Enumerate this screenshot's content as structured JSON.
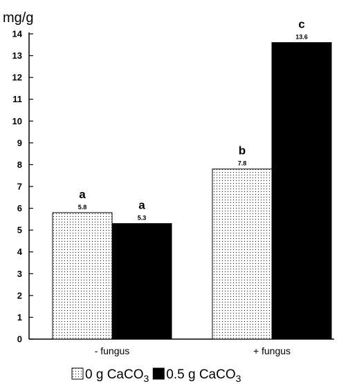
{
  "chart_data": {
    "type": "bar",
    "title": "",
    "ylabel": "mg/g",
    "xlabel": "",
    "ylim": [
      0,
      14
    ],
    "yticks": [
      0,
      1,
      2,
      3,
      4,
      5,
      6,
      7,
      8,
      9,
      10,
      11,
      12,
      13,
      14
    ],
    "categories": [
      "- fungus",
      "+ fungus"
    ],
    "series": [
      {
        "name": "0 g CaCO3",
        "legend_label": "0 g CaCO",
        "legend_sub": "3",
        "pattern": "dotted",
        "color": "#ffffff",
        "values": [
          5.8,
          7.8
        ],
        "value_labels": [
          "5.8",
          "7.8"
        ],
        "significance": [
          "a",
          "b"
        ]
      },
      {
        "name": "0.5 g CaCO3",
        "legend_label": "0.5 g CaCO",
        "legend_sub": "3",
        "pattern": "solid",
        "color": "#000000",
        "values": [
          5.3,
          13.6
        ],
        "value_labels": [
          "5.3",
          "13.6"
        ],
        "significance": [
          "a",
          "c"
        ]
      }
    ],
    "grid": false,
    "legend_position": "bottom"
  }
}
